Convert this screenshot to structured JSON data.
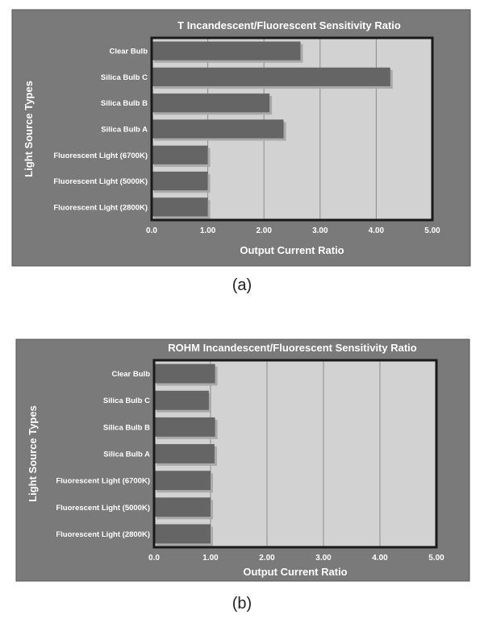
{
  "captions": {
    "a": "(a)",
    "b": "(b)"
  },
  "colors": {
    "panel": "#7a7a7a",
    "plot": "#d2d2d2",
    "bar": "#656565",
    "bar_shadow": "#a9a9a9",
    "text": "#ffffff",
    "grid": "#8c8c8c"
  },
  "chart_data": [
    {
      "type": "bar",
      "orientation": "horizontal",
      "title": "T Incandescent/Fluorescent Sensitivity Ratio",
      "xlabel": "Output Current Ratio",
      "ylabel": "Light Source Types",
      "categories": [
        "Clear Bulb",
        "Silica Bulb C",
        "Silica Bulb B",
        "Silica Bulb A",
        "Fluorescent Light (6700K)",
        "Fluorescent Light (5000K)",
        "Fluorescent Light (2800K)"
      ],
      "values": [
        2.65,
        4.25,
        2.1,
        2.35,
        1.0,
        1.0,
        1.0
      ],
      "xlim": [
        0,
        5
      ],
      "ticks": [
        0,
        1,
        2,
        3,
        4,
        5
      ],
      "tick_labels": [
        "0.0",
        "1.00",
        "2.00",
        "3.00",
        "4.00",
        "5.00"
      ],
      "grid": true
    },
    {
      "type": "bar",
      "orientation": "horizontal",
      "title": "ROHM Incandescent/Fluorescent Sensitivity Ratio",
      "xlabel": "Output Current Ratio",
      "ylabel": "Light Source Types",
      "categories": [
        "Clear Bulb",
        "Silica Bulb C",
        "Silica Bulb B",
        "Silica Bulb A",
        "Fluorescent Light (6700K)",
        "Fluorescent Light (5000K)",
        "Fluorescent Light (2800K)"
      ],
      "values": [
        1.08,
        0.97,
        1.08,
        1.07,
        1.0,
        1.0,
        1.0
      ],
      "xlim": [
        0,
        5
      ],
      "ticks": [
        0,
        1,
        2,
        3,
        4,
        5
      ],
      "tick_labels": [
        "0.0",
        "1.00",
        "2.00",
        "3.00",
        "4.00",
        "5.00"
      ],
      "grid": true
    }
  ]
}
